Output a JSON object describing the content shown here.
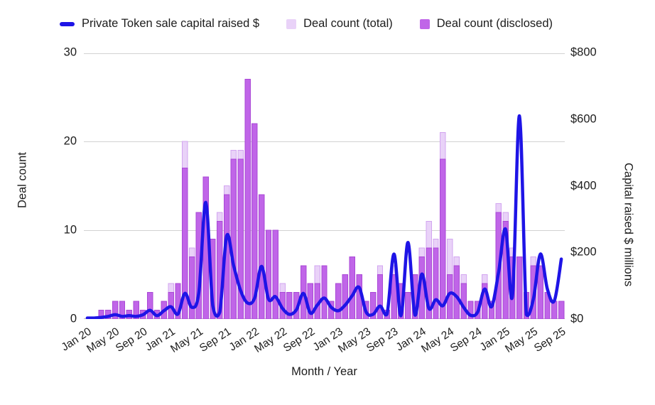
{
  "legend": {
    "items": [
      {
        "label": "Private Token sale capital raised $",
        "swatch": "line-dash",
        "color_key": "line"
      },
      {
        "label": "Deal count (total)",
        "swatch": "square",
        "color_key": "bar_total_fill"
      },
      {
        "label": "Deal count (disclosed)",
        "swatch": "square",
        "color_key": "bar_disclosed_fill"
      }
    ]
  },
  "colors": {
    "line": "#1e14e6",
    "bar_total_fill": "#e9d2f8",
    "bar_total_stroke": "#d2a5f0",
    "bar_disclosed_fill": "#c065e8",
    "bar_disclosed_stroke": "#a948d6",
    "grid": "#d2d2d2",
    "baseline": "#c2c2c2",
    "text": "#1c1c1c"
  },
  "chart_data": {
    "type": "combo (bar + line)",
    "title": "",
    "x_axis": {
      "title": "Month / Year",
      "tick_every_months": 4,
      "tick_labels": [
        "Jan 20",
        "May 20",
        "Sep 20",
        "Jan 21",
        "May 21",
        "Sep 21",
        "Jan 22",
        "May 22",
        "Sep 22",
        "Jan 23",
        "May 23",
        "Sep 23",
        "Jan 24",
        "May 24",
        "Sep 24",
        "Jan 25",
        "May 25",
        "Sep 25"
      ]
    },
    "left_axis": {
      "title": "Deal count",
      "ticks": [
        0,
        10,
        20,
        30
      ],
      "range": [
        0,
        30
      ],
      "grid": true
    },
    "right_axis": {
      "title": "Capital raised $ millions",
      "ticks": [
        "$0",
        "$200",
        "$400",
        "$600",
        "$800"
      ],
      "range": [
        0,
        800
      ]
    },
    "months": [
      "Jan 20",
      "Feb 20",
      "Mar 20",
      "Apr 20",
      "May 20",
      "Jun 20",
      "Jul 20",
      "Aug 20",
      "Sep 20",
      "Oct 20",
      "Nov 20",
      "Dec 20",
      "Jan 21",
      "Feb 21",
      "Mar 21",
      "Apr 21",
      "May 21",
      "Jun 21",
      "Jul 21",
      "Aug 21",
      "Sep 21",
      "Oct 21",
      "Nov 21",
      "Dec 21",
      "Jan 22",
      "Feb 22",
      "Mar 22",
      "Apr 22",
      "May 22",
      "Jun 22",
      "Jul 22",
      "Aug 22",
      "Sep 22",
      "Oct 22",
      "Nov 22",
      "Dec 22",
      "Jan 23",
      "Feb 23",
      "Mar 23",
      "Apr 23",
      "May 23",
      "Jun 23",
      "Jul 23",
      "Aug 23",
      "Sep 23",
      "Oct 23",
      "Nov 23",
      "Dec 23",
      "Jan 24",
      "Feb 24",
      "Mar 24",
      "Apr 24",
      "May 24",
      "Jun 24",
      "Jul 24",
      "Aug 24",
      "Sep 24",
      "Oct 24",
      "Nov 24",
      "Dec 24",
      "Jan 25",
      "Feb 25",
      "Mar 25",
      "Apr 25",
      "May 25",
      "Jun 25",
      "Jul 25",
      "Aug 25",
      "Sep 25"
    ],
    "series": [
      {
        "name": "Deal count (total)",
        "type": "bar",
        "axis": "left",
        "values": [
          0,
          0,
          1,
          1,
          2,
          2,
          1,
          2,
          1,
          3,
          1,
          2,
          4,
          4,
          20,
          8,
          12,
          16,
          9,
          12,
          15,
          19,
          19,
          27,
          22,
          14,
          10,
          10,
          4,
          3,
          3,
          6,
          4,
          6,
          6,
          2,
          4,
          5,
          7,
          5,
          2,
          3,
          6,
          1,
          6,
          4,
          3,
          5,
          8,
          11,
          9,
          21,
          9,
          7,
          5,
          2,
          2,
          5,
          2,
          13,
          12,
          8,
          7,
          3,
          7,
          6,
          3,
          2,
          2
        ]
      },
      {
        "name": "Deal count (disclosed)",
        "type": "bar",
        "axis": "left",
        "values": [
          0,
          0,
          1,
          1,
          2,
          2,
          1,
          2,
          1,
          3,
          1,
          2,
          3,
          4,
          17,
          7,
          12,
          16,
          9,
          11,
          14,
          18,
          18,
          27,
          22,
          14,
          10,
          10,
          3,
          3,
          3,
          6,
          4,
          4,
          6,
          2,
          4,
          5,
          7,
          5,
          2,
          3,
          5,
          1,
          5,
          4,
          3,
          5,
          7,
          8,
          8,
          18,
          5,
          6,
          4,
          2,
          2,
          4,
          2,
          12,
          11,
          7,
          7,
          3,
          6,
          6,
          3,
          2,
          2
        ]
      },
      {
        "name": "Private Token sale capital raised $",
        "type": "line",
        "axis": "right",
        "unit": "$ millions",
        "values": [
          3,
          3,
          5,
          8,
          13,
          8,
          10,
          8,
          13,
          26,
          10,
          25,
          37,
          15,
          77,
          35,
          80,
          350,
          40,
          20,
          250,
          160,
          85,
          48,
          63,
          158,
          60,
          67,
          32,
          14,
          28,
          77,
          18,
          42,
          63,
          35,
          25,
          42,
          70,
          95,
          21,
          14,
          39,
          15,
          195,
          10,
          230,
          12,
          135,
          32,
          58,
          40,
          77,
          67,
          35,
          11,
          21,
          90,
          37,
          140,
          270,
          70,
          610,
          13,
          60,
          195,
          90,
          55,
          180
        ]
      }
    ]
  }
}
